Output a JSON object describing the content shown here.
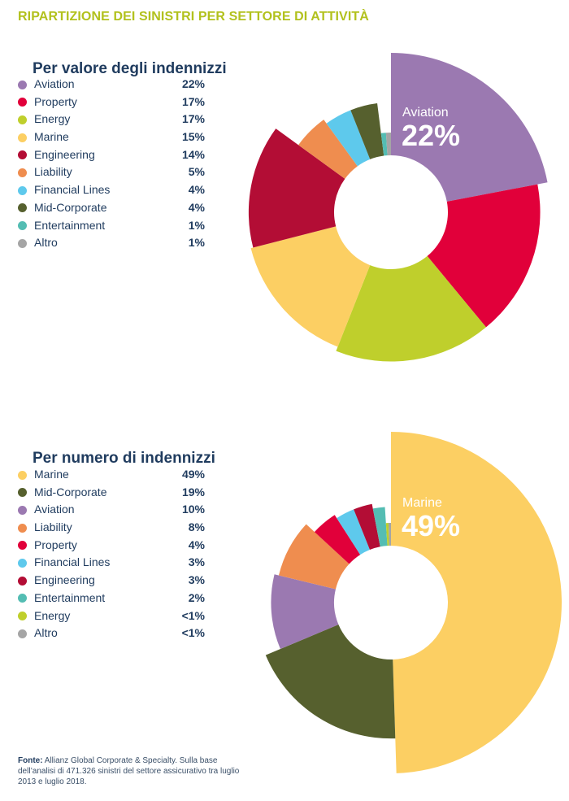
{
  "title": "RIPARTIZIONE DEI SINISTRI PER SETTORE DI ATTIVITÀ",
  "colors": {
    "Aviation": "#9b79b1",
    "Property": "#e1003a",
    "Energy": "#bfcf2c",
    "Marine": "#fccf63",
    "Engineering": "#b30d35",
    "Liability": "#ef8d4f",
    "Financial Lines": "#5ec9ec",
    "Mid-Corporate": "#56602e",
    "Entertainment": "#54bdb3",
    "Altro": "#a5a5a5"
  },
  "chart_data": [
    {
      "type": "pie",
      "subtype": "donut-rose",
      "title": "Per valore degli indennizzi",
      "categories": [
        "Aviation",
        "Property",
        "Energy",
        "Marine",
        "Engineering",
        "Liability",
        "Financial Lines",
        "Mid-Corporate",
        "Entertainment",
        "Altro"
      ],
      "values": [
        22,
        17,
        17,
        15,
        14,
        5,
        4,
        4,
        1,
        1
      ],
      "labels": [
        "22%",
        "17%",
        "17%",
        "15%",
        "14%",
        "5%",
        "4%",
        "4%",
        "1%",
        "1%"
      ],
      "highlight": {
        "label": "Aviation",
        "value": "22%"
      }
    },
    {
      "type": "pie",
      "subtype": "donut-rose",
      "title": "Per numero di indennizzi",
      "categories": [
        "Marine",
        "Mid-Corporate",
        "Aviation",
        "Liability",
        "Property",
        "Financial Lines",
        "Engineering",
        "Entertainment",
        "Energy",
        "Altro"
      ],
      "values": [
        49,
        19,
        10,
        8,
        4,
        3,
        3,
        2,
        0.5,
        0.5
      ],
      "labels": [
        "49%",
        "19%",
        "10%",
        "8%",
        "4%",
        "3%",
        "3%",
        "2%",
        "<1%",
        "<1%"
      ],
      "highlight": {
        "label": "Marine",
        "value": "49%"
      }
    }
  ],
  "source": {
    "label": "Fonte:",
    "text": " Allianz Global Corporate & Specialty. Sulla base dell’analisi di 471.326 sinistri del settore assicurativo tra luglio 2013 e luglio 2018."
  }
}
